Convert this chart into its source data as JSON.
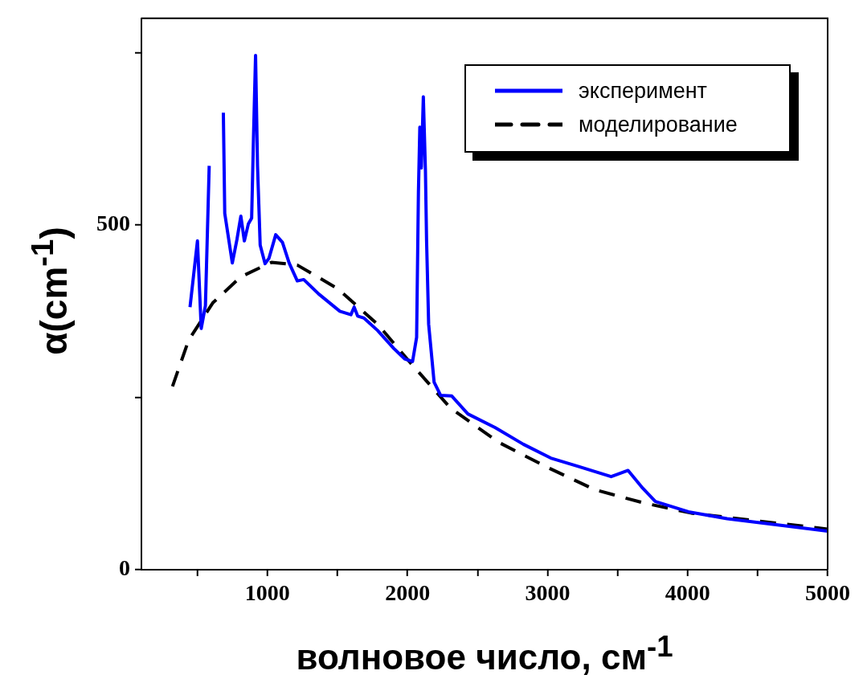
{
  "chart_data": {
    "type": "line",
    "xlabel": "волновое число, см$^{-1}$",
    "ylabel": "α(cm$^{-1}$)",
    "xlim": [
      100,
      5000
    ],
    "ylim": [
      0,
      800
    ],
    "xticks": [
      {
        "value": 500,
        "label": null
      },
      1000,
      {
        "value": 1500,
        "label": null
      },
      2000,
      {
        "value": 2500,
        "label": null
      },
      3000,
      {
        "value": 3500,
        "label": null
      },
      4000,
      {
        "value": 4500,
        "label": null
      },
      5000
    ],
    "yticks": [
      0,
      {
        "value": 250,
        "label": null
      },
      500,
      {
        "value": 750,
        "label": null
      }
    ],
    "grid": false,
    "legend": "top right",
    "marker": "none",
    "series": [
      {
        "name": "эксперимент",
        "color": "#0000ff",
        "line_style": "solid",
        "x": [
          447,
          500,
          527,
          557,
          584,
          598,
          637,
          676,
          685,
          695,
          749,
          782,
          810,
          835,
          864,
          887,
          900,
          915,
          929,
          948,
          983,
          1011,
          1059,
          1107,
          1155,
          1213,
          1259,
          1366,
          1517,
          1596,
          1619,
          1644,
          1690,
          1787,
          1902,
          1979,
          2036,
          2065,
          2078,
          2088,
          2099,
          2113,
          2128,
          2136,
          2151,
          2190,
          2236,
          2316,
          2431,
          2627,
          2827,
          3023,
          3218,
          3454,
          3575,
          3672,
          3770,
          4006,
          4282,
          4678,
          5000
        ],
        "values": [
          381,
          477,
          350,
          383,
          586,
          null,
          null,
          null,
          663,
          517,
          445,
          479,
          513,
          477,
          502,
          510,
          625,
          746,
          586,
          471,
          444,
          452,
          486,
          475,
          445,
          419,
          421,
          400,
          375,
          370,
          381,
          368,
          365,
          347,
          321,
          306,
          302,
          337,
          548,
          642,
          583,
          686,
          579,
          479,
          356,
          272,
          253,
          252,
          226,
          206,
          182,
          162,
          150,
          135,
          144,
          120,
          99,
          84,
          74,
          64,
          56
        ]
      },
      {
        "name": "моделирование",
        "color": "#000000",
        "line_style": "dashed",
        "x": [
          322,
          437,
          609,
          810,
          1029,
          1213,
          1500,
          1787,
          2017,
          2305,
          2649,
          2994,
          3339,
          3684,
          4029,
          4489,
          5000
        ],
        "values": [
          266,
          333,
          387,
          425,
          446,
          442,
          408,
          356,
          301,
          235,
          185,
          149,
          116,
          97,
          82,
          71,
          59
        ]
      }
    ]
  }
}
